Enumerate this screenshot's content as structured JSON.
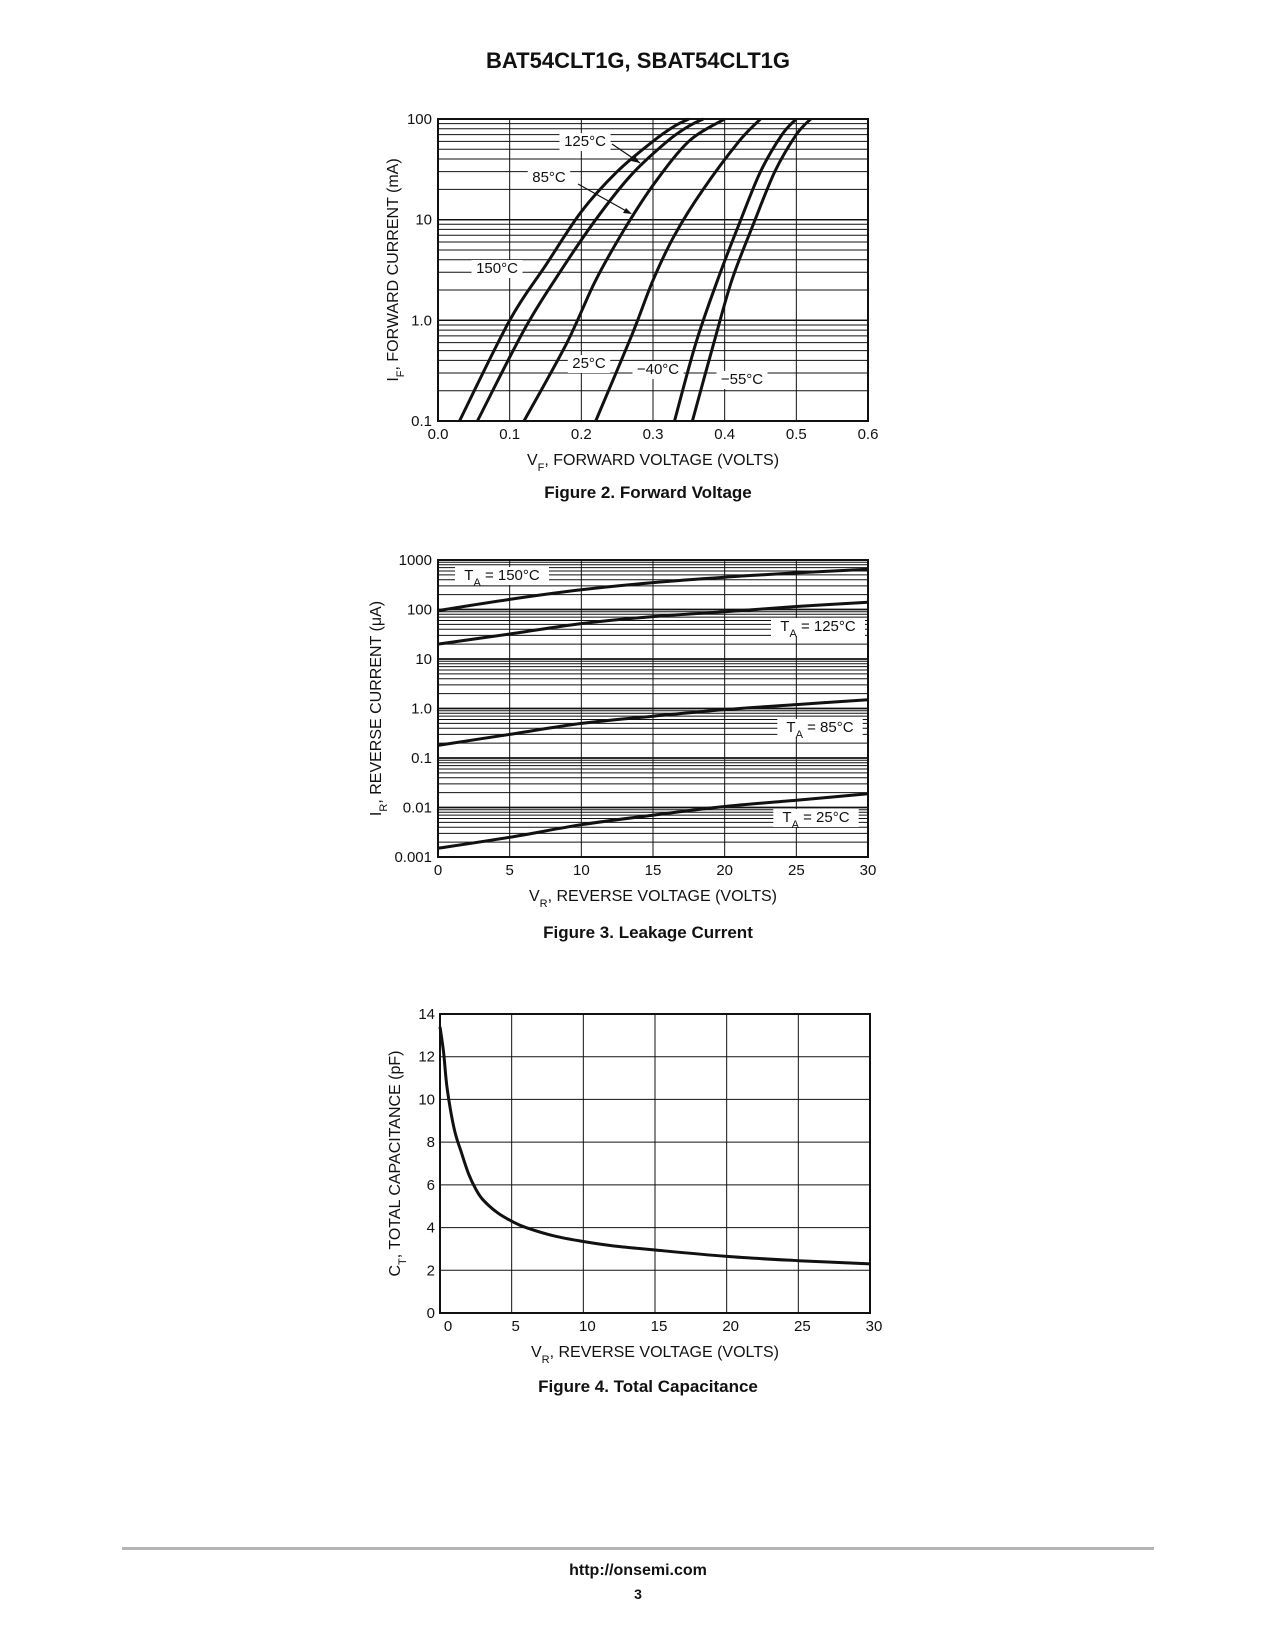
{
  "header": {
    "title": "BAT54CLT1G, SBAT54CLT1G"
  },
  "footer": {
    "url": "http://onsemi.com",
    "page_number": "3"
  },
  "chart_data": [
    {
      "type": "line",
      "caption": "Figure 2. Forward Voltage",
      "xlabel_sub": "F",
      "xlabel": "FORWARD VOLTAGE (VOLTS)",
      "ylabel_sub": "F",
      "ylabel": "FORWARD CURRENT (mA)",
      "yscale": "log",
      "xlim": [
        0,
        0.6
      ],
      "ylim": [
        0.1,
        100
      ],
      "xticks": [
        "0.0",
        "0.1",
        "0.2",
        "0.3",
        "0.4",
        "0.5",
        "0.6"
      ],
      "yticks": [
        "0.1",
        "1.0",
        "10",
        "100"
      ],
      "grid": true,
      "series": [
        {
          "name": "150°C",
          "x": [
            0.03,
            0.1,
            0.15,
            0.2,
            0.25,
            0.3,
            0.33,
            0.35
          ],
          "y": [
            0.1,
            1.0,
            3.5,
            12,
            30,
            60,
            85,
            100
          ]
        },
        {
          "name": "125°C",
          "x": [
            0.055,
            0.12,
            0.17,
            0.22,
            0.27,
            0.32,
            0.35,
            0.37
          ],
          "y": [
            0.1,
            0.8,
            3,
            10,
            28,
            60,
            85,
            100
          ]
        },
        {
          "name": "85°C",
          "x": [
            0.12,
            0.18,
            0.22,
            0.26,
            0.3,
            0.35,
            0.4
          ],
          "y": [
            0.1,
            0.6,
            2.5,
            8,
            22,
            60,
            100
          ]
        },
        {
          "name": "25°C",
          "x": [
            0.22,
            0.27,
            0.3,
            0.33,
            0.37,
            0.42,
            0.45
          ],
          "y": [
            0.1,
            0.7,
            2.5,
            7,
            20,
            60,
            100
          ]
        },
        {
          "name": "−40°C",
          "x": [
            0.33,
            0.36,
            0.39,
            0.42,
            0.45,
            0.48,
            0.5
          ],
          "y": [
            0.1,
            0.6,
            2.5,
            9,
            30,
            70,
            100
          ]
        },
        {
          "name": "−55°C",
          "x": [
            0.355,
            0.385,
            0.41,
            0.44,
            0.47,
            0.5,
            0.52
          ],
          "y": [
            0.1,
            0.6,
            2.5,
            9,
            30,
            70,
            100
          ]
        }
      ],
      "curve_labels": [
        "150°C",
        "125°C",
        "85°C",
        "25°C",
        "−40°C",
        "−55°C"
      ]
    },
    {
      "type": "line",
      "caption": "Figure 3. Leakage Current",
      "xlabel_sub": "R",
      "xlabel": "REVERSE VOLTAGE (VOLTS)",
      "ylabel_sub": "R",
      "ylabel": "REVERSE CURRENT (μA)",
      "yscale": "log",
      "xlim": [
        0,
        30
      ],
      "ylim": [
        0.001,
        1000
      ],
      "xticks": [
        "0",
        "5",
        "10",
        "15",
        "20",
        "25",
        "30"
      ],
      "yticks": [
        "0.001",
        "0.01",
        "0.1",
        "1.0",
        "10",
        "100",
        "1000"
      ],
      "grid": true,
      "series": [
        {
          "name": "T_A = 150°C",
          "x": [
            0,
            5,
            10,
            15,
            20,
            25,
            30
          ],
          "y": [
            95,
            160,
            250,
            350,
            450,
            550,
            650
          ]
        },
        {
          "name": "T_A = 125°C",
          "x": [
            0,
            5,
            10,
            15,
            20,
            25,
            30
          ],
          "y": [
            20,
            32,
            52,
            72,
            90,
            115,
            140
          ]
        },
        {
          "name": "T_A = 85°C",
          "x": [
            0,
            5,
            10,
            15,
            20,
            25,
            30
          ],
          "y": [
            0.18,
            0.3,
            0.5,
            0.7,
            0.95,
            1.2,
            1.5
          ]
        },
        {
          "name": "T_A = 25°C",
          "x": [
            0,
            5,
            10,
            15,
            20,
            25,
            30
          ],
          "y": [
            0.0015,
            0.0025,
            0.0045,
            0.007,
            0.0105,
            0.014,
            0.019
          ]
        }
      ],
      "curve_labels": [
        {
          "main": "T",
          "sub": "A",
          "rest": " = 150°C"
        },
        {
          "main": "T",
          "sub": "A",
          "rest": " = 125°C"
        },
        {
          "main": "T",
          "sub": "A",
          "rest": " = 85°C"
        },
        {
          "main": "T",
          "sub": "A",
          "rest": " = 25°C"
        }
      ]
    },
    {
      "type": "line",
      "caption": "Figure 4. Total Capacitance",
      "xlabel_sub": "R",
      "xlabel": "REVERSE VOLTAGE (VOLTS)",
      "ylabel_sub": "T",
      "ylabel": "TOTAL CAPACITANCE (pF)",
      "yscale": "linear",
      "xlim": [
        0,
        30
      ],
      "ylim": [
        0,
        14
      ],
      "xticks": [
        "0",
        "5",
        "10",
        "15",
        "20",
        "25",
        "30"
      ],
      "yticks": [
        "0",
        "2",
        "4",
        "6",
        "8",
        "10",
        "12",
        "14"
      ],
      "grid": true,
      "series": [
        {
          "name": "",
          "x": [
            0,
            0.25,
            0.5,
            1,
            1.5,
            2,
            2.5,
            3,
            4,
            5,
            6,
            8,
            10,
            12,
            15,
            20,
            25,
            30
          ],
          "y": [
            13.4,
            12.2,
            10.5,
            8.6,
            7.5,
            6.5,
            5.8,
            5.3,
            4.7,
            4.3,
            4.0,
            3.6,
            3.35,
            3.15,
            2.95,
            2.65,
            2.45,
            2.3
          ]
        }
      ]
    }
  ]
}
